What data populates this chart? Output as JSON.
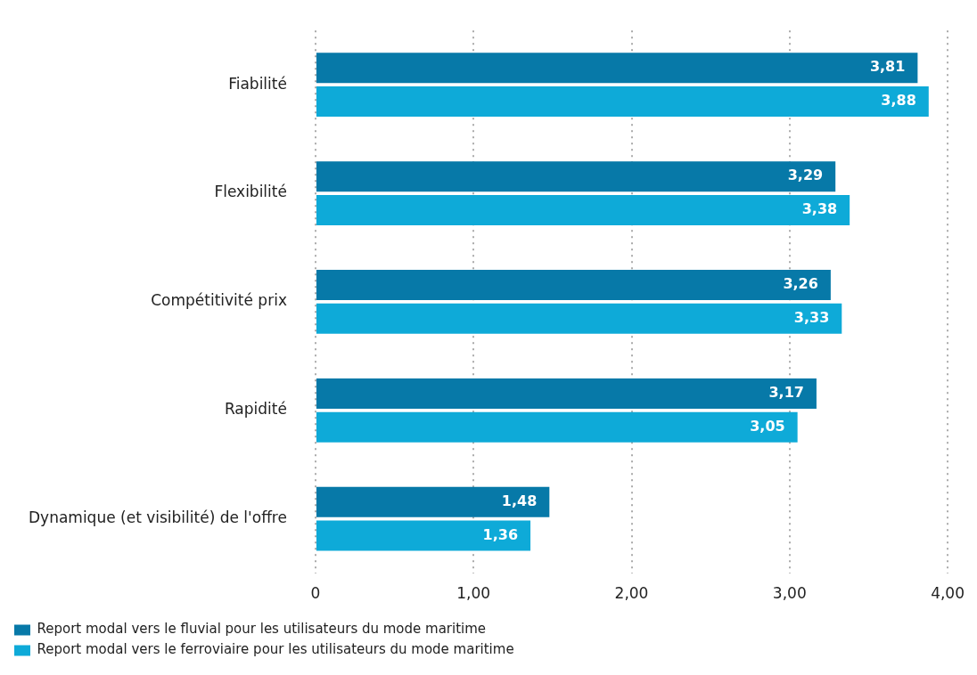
{
  "chart_data": {
    "type": "bar",
    "orientation": "horizontal",
    "categories": [
      "Fiabilité",
      "Flexibilité",
      "Compétitivité prix",
      "Rapidité",
      "Dynamique (et visibilité) de l'offre"
    ],
    "series": [
      {
        "name": "Report modal vers le fluvial pour les utilisateurs du mode maritime",
        "color": "#0779a8",
        "values": [
          3.81,
          3.29,
          3.26,
          3.17,
          1.48
        ],
        "value_labels": [
          "3,81",
          "3,29",
          "3,26",
          "3,17",
          "1,48"
        ]
      },
      {
        "name": "Report modal vers le ferroviaire pour les utilisateurs du mode maritime",
        "color": "#0eaad8",
        "values": [
          3.88,
          3.38,
          3.33,
          3.05,
          1.36
        ],
        "value_labels": [
          "3,88",
          "3,38",
          "3,33",
          "3,05",
          "1,36"
        ]
      }
    ],
    "xlim": [
      0,
      4
    ],
    "xticks": [
      0,
      {
        "value": 1,
        "label": "1,00"
      },
      {
        "value": 2,
        "label": "2,00"
      },
      {
        "value": 3,
        "label": "3,00"
      },
      {
        "value": 4,
        "label": "4,00"
      }
    ],
    "grid": "x",
    "legend": "bottom left"
  }
}
